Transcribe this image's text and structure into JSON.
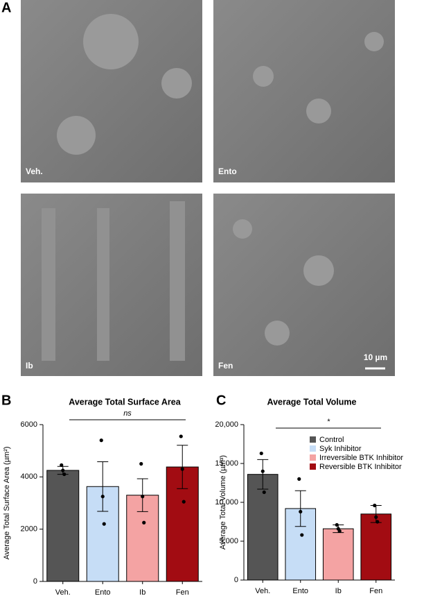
{
  "figure": {
    "panel_labels": [
      "A",
      "B",
      "C"
    ],
    "image_labels": [
      "Veh.",
      "Ento",
      "Ib",
      "Fen"
    ],
    "scale_bar": "10 µm"
  },
  "chart_data": [
    {
      "type": "bar",
      "title": "Average Total Surface Area",
      "ylabel": "Average Total Surface Area (µm²)",
      "categories": [
        "Veh.",
        "Ento",
        "Ib",
        "Fen"
      ],
      "values": [
        4250,
        3630,
        3300,
        4380
      ],
      "errors": [
        150,
        950,
        630,
        830
      ],
      "points": [
        [
          4450,
          4250,
          4100
        ],
        [
          5400,
          3250,
          2200
        ],
        [
          4500,
          3250,
          2250
        ],
        [
          5550,
          4300,
          3050
        ]
      ],
      "colors": [
        "#555555",
        "#c6ddf6",
        "#f4a3a3",
        "#a20c12"
      ],
      "ylim": [
        0,
        6000
      ],
      "yticks": [
        0,
        2000,
        4000,
        6000
      ],
      "annotation": "ns"
    },
    {
      "type": "bar",
      "title": "Average Total Volume",
      "ylabel": "Average Total Volume (µm³)",
      "categories": [
        "Veh.",
        "Ento",
        "Ib",
        "Fen"
      ],
      "values": [
        13600,
        9200,
        6600,
        8500
      ],
      "errors": [
        1900,
        2300,
        500,
        1100
      ],
      "points": [
        [
          16300,
          14000,
          11300
        ],
        [
          13000,
          8800,
          5800
        ],
        [
          7100,
          6600,
          6300
        ],
        [
          9600,
          8100,
          7500
        ]
      ],
      "colors": [
        "#555555",
        "#c6ddf6",
        "#f4a3a3",
        "#a20c12"
      ],
      "legend_labels": [
        "Control",
        "Syk Inhibitor",
        "Irreversible BTK Inhibitor",
        "Reversible BTK Inhibitor"
      ],
      "ylim": [
        0,
        20000
      ],
      "yticks": [
        0,
        {
          "value": 5000,
          "label": "5,000"
        },
        {
          "value": 10000,
          "label": "10,000"
        },
        {
          "value": 15000,
          "label": "15,000"
        },
        {
          "value": 20000,
          "label": "20,000"
        }
      ],
      "annotation": "*"
    }
  ]
}
